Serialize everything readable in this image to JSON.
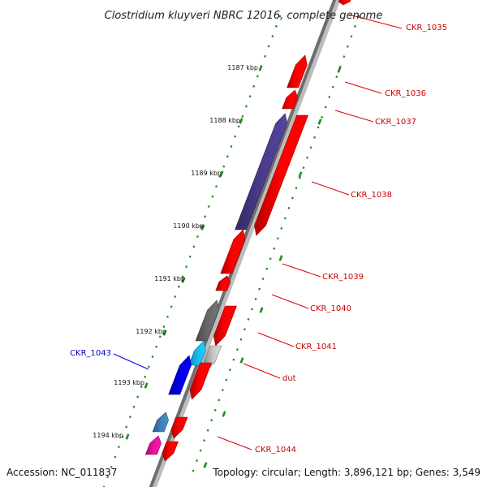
{
  "title": "Clostridium kluyveri NBRC 12016, complete genome",
  "footer": {
    "accession": "Accession: NC_011837",
    "info": "Topology: circular; Length: 3,896,121 bp; Genes: 3,549"
  },
  "scale_labels": [
    "1187 kbp",
    "1188 kbp",
    "1189 kbp",
    "1190 kbp",
    "1191 kbp",
    "1192 kbp",
    "1193 kbp",
    "1194 kbp"
  ],
  "colors": {
    "backbone_dark": "#6e6e6e",
    "backbone_light": "#bdbdbd",
    "scale_ticks": "#1e8a1e",
    "label_red": "#cc0000",
    "label_blue": "#0000cc",
    "leader_red": "#e00000",
    "leader_blue": "#0000dd"
  },
  "gene_labels": [
    {
      "name": "CKR_1035",
      "color": "red"
    },
    {
      "name": "CKR_1036",
      "color": "red"
    },
    {
      "name": "CKR_1037",
      "color": "red"
    },
    {
      "name": "CKR_1038",
      "color": "red"
    },
    {
      "name": "CKR_1039",
      "color": "red"
    },
    {
      "name": "CKR_1040",
      "color": "red"
    },
    {
      "name": "CKR_1041",
      "color": "red"
    },
    {
      "name": "dut",
      "color": "red"
    },
    {
      "name": "CKR_1043",
      "color": "blue"
    },
    {
      "name": "CKR_1044",
      "color": "red"
    }
  ],
  "features": [
    {
      "name": "red-arrow",
      "color": "#ff0000"
    },
    {
      "name": "red-arrow",
      "color": "#ff0000"
    },
    {
      "name": "red-arrow",
      "color": "#ff0000"
    },
    {
      "name": "purple-arrow",
      "color": "#4b3a8c"
    },
    {
      "name": "red-arrow",
      "color": "#ff0000"
    },
    {
      "name": "red-arrow",
      "color": "#ff0000"
    },
    {
      "name": "red-arrow",
      "color": "#ff0000"
    },
    {
      "name": "gray-arrow",
      "color": "#666666"
    },
    {
      "name": "red-arrow",
      "color": "#ff0000"
    },
    {
      "name": "cyan-arrow",
      "color": "#19b8ef"
    },
    {
      "name": "lightgray-arrow",
      "color": "#c4c4c4"
    },
    {
      "name": "blue-arrow",
      "color": "#0000e6"
    },
    {
      "name": "red-arrow",
      "color": "#ff0000"
    },
    {
      "name": "steelblue-arrow",
      "color": "#3e7db8"
    },
    {
      "name": "red-arrow",
      "color": "#ff0000"
    },
    {
      "name": "magenta-arrow",
      "color": "#e8129c"
    },
    {
      "name": "red-arrow",
      "color": "#ff0000"
    }
  ]
}
